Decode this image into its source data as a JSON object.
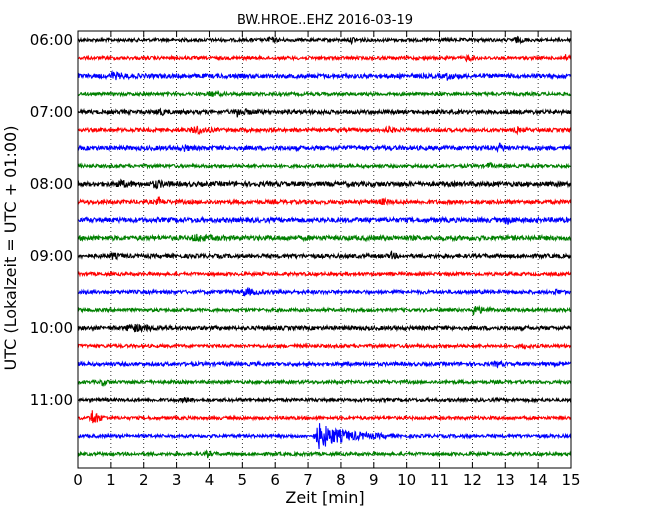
{
  "chart_data": {
    "type": "line",
    "title": "BW.HROE..EHZ 2016-03-19",
    "xlabel": "Zeit  [min]",
    "ylabel": "UTC (Lokalzeit = UTC + 01:00)",
    "xlim": [
      0,
      15
    ],
    "x_ticks": [
      "0",
      "1",
      "2",
      "3",
      "4",
      "5",
      "6",
      "7",
      "8",
      "9",
      "10",
      "11",
      "12",
      "13",
      "14",
      "15"
    ],
    "y_tick_labels": [
      "06:00",
      "07:00",
      "08:00",
      "09:00",
      "10:00",
      "11:00"
    ],
    "grid": "vertical dotted",
    "line_colors": [
      "#000000",
      "#ff0000",
      "#0000ff",
      "#008000"
    ],
    "traces": [
      {
        "start": "06:00",
        "color": "#000000",
        "noise": 1.6,
        "events": [
          {
            "t": 5.8,
            "amp": 3,
            "dur": 0.5
          },
          {
            "t": 8.3,
            "amp": 3,
            "dur": 0.5
          },
          {
            "t": 13.3,
            "amp": 3,
            "dur": 0.5
          }
        ]
      },
      {
        "start": "06:15",
        "color": "#ff0000",
        "noise": 1.6,
        "events": [
          {
            "t": 11.8,
            "amp": 3,
            "dur": 0.5
          },
          {
            "t": 14.8,
            "amp": 3,
            "dur": 0.4
          }
        ]
      },
      {
        "start": "06:30",
        "color": "#0000ff",
        "noise": 2.2,
        "events": [
          {
            "t": 1.0,
            "amp": 3,
            "dur": 1.0
          },
          {
            "t": 11.2,
            "amp": 3,
            "dur": 0.6
          }
        ]
      },
      {
        "start": "06:45",
        "color": "#008000",
        "noise": 1.6,
        "events": [
          {
            "t": 4.0,
            "amp": 2.5,
            "dur": 0.6
          }
        ]
      },
      {
        "start": "07:00",
        "color": "#000000",
        "noise": 2.0,
        "events": [
          {
            "t": 2.4,
            "amp": 4,
            "dur": 0.5
          },
          {
            "t": 4.8,
            "amp": 4,
            "dur": 0.8
          }
        ]
      },
      {
        "start": "07:15",
        "color": "#ff0000",
        "noise": 1.8,
        "events": [
          {
            "t": 3.5,
            "amp": 5,
            "dur": 0.8
          },
          {
            "t": 9.4,
            "amp": 4,
            "dur": 0.4
          },
          {
            "t": 13.3,
            "amp": 3,
            "dur": 0.4
          }
        ]
      },
      {
        "start": "07:30",
        "color": "#0000ff",
        "noise": 2.2,
        "events": [
          {
            "t": 3.2,
            "amp": 3,
            "dur": 0.4
          },
          {
            "t": 12.8,
            "amp": 4,
            "dur": 0.4
          }
        ]
      },
      {
        "start": "07:45",
        "color": "#008000",
        "noise": 1.6,
        "events": [
          {
            "t": 12.5,
            "amp": 6,
            "dur": 0.15
          }
        ]
      },
      {
        "start": "08:00",
        "color": "#000000",
        "noise": 2.4,
        "events": [
          {
            "t": 1.2,
            "amp": 4,
            "dur": 0.6
          },
          {
            "t": 2.3,
            "amp": 4,
            "dur": 0.6
          }
        ]
      },
      {
        "start": "08:15",
        "color": "#ff0000",
        "noise": 2.0,
        "events": [
          {
            "t": 2.4,
            "amp": 4,
            "dur": 0.4
          },
          {
            "t": 9.2,
            "amp": 3,
            "dur": 0.5
          }
        ]
      },
      {
        "start": "08:30",
        "color": "#0000ff",
        "noise": 2.4,
        "events": [
          {
            "t": 13.0,
            "amp": 4,
            "dur": 0.5
          }
        ]
      },
      {
        "start": "08:45",
        "color": "#008000",
        "noise": 2.4,
        "events": [
          {
            "t": 3.5,
            "amp": 3,
            "dur": 1.0
          }
        ]
      },
      {
        "start": "09:00",
        "color": "#000000",
        "noise": 2.0,
        "events": [
          {
            "t": 1.0,
            "amp": 3,
            "dur": 0.5
          },
          {
            "t": 9.5,
            "amp": 3,
            "dur": 0.4
          }
        ]
      },
      {
        "start": "09:15",
        "color": "#ff0000",
        "noise": 1.6,
        "events": []
      },
      {
        "start": "09:30",
        "color": "#0000ff",
        "noise": 1.8,
        "events": [
          {
            "t": 5.0,
            "amp": 4,
            "dur": 0.9
          },
          {
            "t": 14.5,
            "amp": 3,
            "dur": 0.3
          }
        ]
      },
      {
        "start": "09:45",
        "color": "#008000",
        "noise": 1.6,
        "events": [
          {
            "t": 12.0,
            "amp": 5,
            "dur": 0.8
          }
        ]
      },
      {
        "start": "10:00",
        "color": "#000000",
        "noise": 2.0,
        "events": [
          {
            "t": 1.5,
            "amp": 4,
            "dur": 1.5
          }
        ]
      },
      {
        "start": "10:15",
        "color": "#ff0000",
        "noise": 1.6,
        "events": [
          {
            "t": 13.5,
            "amp": 3,
            "dur": 0.4
          }
        ]
      },
      {
        "start": "10:30",
        "color": "#0000ff",
        "noise": 1.8,
        "events": [
          {
            "t": 12.7,
            "amp": 3,
            "dur": 0.4
          }
        ]
      },
      {
        "start": "10:45",
        "color": "#008000",
        "noise": 1.6,
        "events": [
          {
            "t": 0.7,
            "amp": 3,
            "dur": 0.4
          }
        ]
      },
      {
        "start": "11:00",
        "color": "#000000",
        "noise": 1.6,
        "events": [
          {
            "t": 3.2,
            "amp": 3,
            "dur": 0.4
          }
        ]
      },
      {
        "start": "11:15",
        "color": "#ff0000",
        "noise": 1.6,
        "events": [
          {
            "t": 0.4,
            "amp": 10,
            "dur": 0.5
          }
        ]
      },
      {
        "start": "11:30",
        "color": "#0000ff",
        "noise": 1.6,
        "events": [
          {
            "t": 7.25,
            "amp": 13,
            "dur": 2.4
          }
        ]
      },
      {
        "start": "11:45",
        "color": "#008000",
        "noise": 1.6,
        "events": [
          {
            "t": 3.9,
            "amp": 3,
            "dur": 0.4
          }
        ]
      }
    ]
  }
}
